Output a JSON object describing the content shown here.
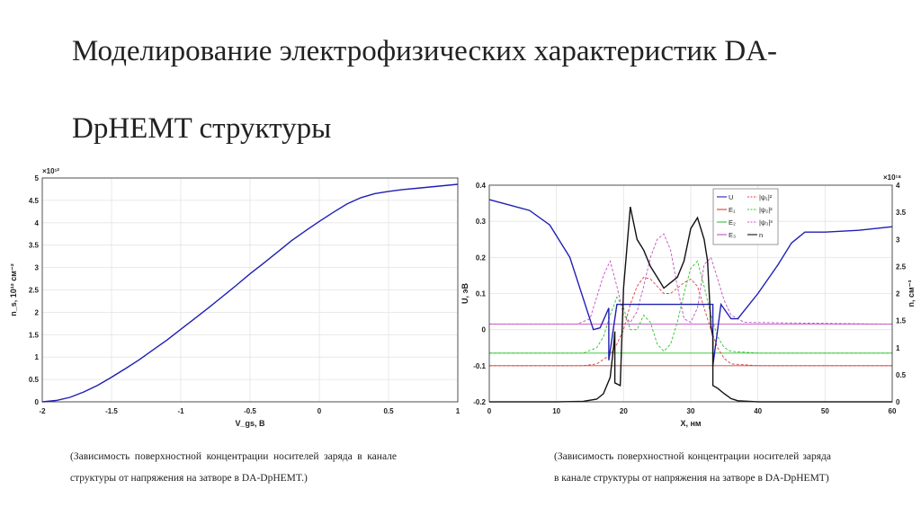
{
  "slide": {
    "title_line1": "Моделирование электрофизических характеристик DA-",
    "title_line2": "DpHEMT структуры"
  },
  "captions": {
    "left": "(Зависимость поверхностной концентрации носителей заряда в канале структуры от напряжения на затворе в DA-DpHEMT.)",
    "right": "(Зависимость поверхностной концентрации носителей заряда в канале структуры от напряжения на затворе в DA-DpHEMT)"
  },
  "chart_data": [
    {
      "type": "line",
      "multiplier": "×10¹²",
      "xlabel": "V_gs, В",
      "ylabel": "n_s, 10¹² см⁻²",
      "xlim": [
        -2,
        1
      ],
      "ylim": [
        0,
        5
      ],
      "xticks": [
        "-2",
        "-1.5",
        "-1",
        "-0.5",
        "0",
        "0.5",
        "1"
      ],
      "yticks": [
        "0",
        "0.5",
        "1",
        "1.5",
        "2",
        "2.5",
        "3",
        "3.5",
        "4",
        "4.5",
        "5"
      ],
      "grid": true,
      "series": [
        {
          "color": "#1f1fb4",
          "x": [
            -2,
            -1.9,
            -1.8,
            -1.7,
            -1.6,
            -1.5,
            -1.4,
            -1.3,
            -1.2,
            -1.1,
            -1.0,
            -0.9,
            -0.8,
            -0.7,
            -0.6,
            -0.5,
            -0.4,
            -0.3,
            -0.2,
            -0.1,
            0.0,
            0.1,
            0.2,
            0.3,
            0.4,
            0.5,
            0.6,
            0.7,
            0.8,
            0.9,
            1.0
          ],
          "y": [
            0.0,
            0.03,
            0.1,
            0.22,
            0.37,
            0.55,
            0.74,
            0.94,
            1.16,
            1.38,
            1.62,
            1.86,
            2.1,
            2.35,
            2.6,
            2.86,
            3.1,
            3.35,
            3.6,
            3.82,
            4.03,
            4.23,
            4.42,
            4.56,
            4.65,
            4.7,
            4.74,
            4.77,
            4.8,
            4.83,
            4.86
          ]
        }
      ]
    },
    {
      "type": "line",
      "xlabel": "X, нм",
      "ylabel_left": "U, эВ",
      "ylabel_right": "n, см⁻³",
      "multiplier_right": "×10¹⁸",
      "xlim": [
        0,
        60
      ],
      "ylim_left": [
        -0.2,
        0.4
      ],
      "ylim_right": [
        0,
        4
      ],
      "xticks": [
        "0",
        "10",
        "20",
        "30",
        "40",
        "50",
        "60"
      ],
      "yticks_left": [
        "-0.2",
        "-0.1",
        "0",
        "0.1",
        "0.2",
        "0.3",
        "0.4"
      ],
      "yticks_right": [
        "0",
        "0.5",
        "1",
        "1.5",
        "2",
        "2.5",
        "3",
        "3.5",
        "4"
      ],
      "grid": true,
      "legend": {
        "placement": "top-right",
        "entries": [
          "U",
          "|ψ₁|²",
          "E₁",
          "|ψ₂|²",
          "E₂",
          "|ψ₃|³",
          "E₃",
          "n"
        ]
      },
      "series": [
        {
          "name": "U",
          "axis": "left",
          "color": "#1f1fb4",
          "x": [
            0,
            3,
            6,
            9,
            12,
            15.5,
            16.5,
            17.8,
            17.8,
            19,
            21,
            23,
            26,
            29,
            31,
            33.3,
            33.3,
            34.5,
            36,
            37,
            40,
            43,
            45,
            47,
            50,
            55,
            60
          ],
          "y": [
            0.36,
            0.345,
            0.33,
            0.29,
            0.2,
            0.0,
            0.005,
            0.06,
            -0.085,
            0.07,
            0.07,
            0.07,
            0.07,
            0.07,
            0.07,
            0.07,
            -0.1,
            0.07,
            0.03,
            0.03,
            0.1,
            0.18,
            0.24,
            0.27,
            0.27,
            0.275,
            0.285
          ]
        },
        {
          "name": "n",
          "axis": "right",
          "color": "#111111",
          "x": [
            0,
            10,
            14,
            16,
            17,
            18,
            18.5,
            18.7,
            18.7,
            19.5,
            20,
            21,
            22,
            23,
            24,
            25,
            26,
            27,
            28,
            29,
            30,
            31,
            32,
            32.5,
            33,
            33.3,
            33.3,
            34,
            35,
            36,
            37,
            40,
            50,
            60
          ],
          "y": [
            0,
            0,
            0.01,
            0.05,
            0.15,
            0.45,
            1.0,
            1.3,
            0.35,
            0.3,
            2.1,
            3.6,
            3.0,
            2.8,
            2.5,
            2.3,
            2.1,
            2.2,
            2.3,
            2.6,
            3.2,
            3.4,
            3.0,
            2.6,
            1.4,
            1.2,
            0.3,
            0.25,
            0.15,
            0.06,
            0.02,
            0.0,
            0.0,
            0.0
          ]
        },
        {
          "name": "E₁",
          "axis": "left",
          "color": "#d94040",
          "x": [
            0,
            60
          ],
          "y": [
            -0.1,
            -0.1
          ]
        },
        {
          "name": "E₂",
          "axis": "left",
          "color": "#30c030",
          "x": [
            0,
            60
          ],
          "y": [
            -0.065,
            -0.065
          ]
        },
        {
          "name": "E₃",
          "axis": "left",
          "color": "#c050c0",
          "x": [
            0,
            60
          ],
          "y": [
            0.015,
            0.015
          ]
        },
        {
          "name": "|ψ₁|²",
          "axis": "left",
          "color": "#d94040",
          "dashed": true,
          "x": [
            0,
            14,
            16,
            18,
            19,
            20,
            21,
            22,
            23,
            24,
            25,
            26,
            27,
            28,
            29,
            30,
            31,
            32,
            33,
            34,
            35,
            36,
            40,
            60
          ],
          "y": [
            -0.1,
            -0.1,
            -0.095,
            -0.07,
            -0.04,
            0.0,
            0.07,
            0.12,
            0.145,
            0.14,
            0.12,
            0.1,
            0.1,
            0.115,
            0.13,
            0.14,
            0.12,
            0.06,
            0.0,
            -0.05,
            -0.08,
            -0.095,
            -0.1,
            -0.1
          ]
        },
        {
          "name": "|ψ₂|²",
          "axis": "left",
          "color": "#30c030",
          "dashed": true,
          "x": [
            0,
            14,
            16,
            17,
            18,
            19,
            20,
            21,
            22,
            23,
            24,
            25,
            26,
            27,
            28,
            29,
            30,
            31,
            32,
            33,
            34,
            35,
            36,
            40,
            60
          ],
          "y": [
            -0.065,
            -0.065,
            -0.05,
            -0.02,
            0.04,
            0.09,
            0.06,
            0.0,
            0.0,
            0.04,
            0.02,
            -0.04,
            -0.06,
            -0.04,
            0.02,
            0.1,
            0.17,
            0.19,
            0.12,
            0.04,
            -0.02,
            -0.05,
            -0.06,
            -0.065,
            -0.065
          ]
        },
        {
          "name": "|ψ₃|³",
          "axis": "left",
          "color": "#c050c0",
          "dashed": true,
          "x": [
            0,
            13,
            15,
            16,
            17,
            18,
            19,
            20,
            21,
            22,
            23,
            24,
            25,
            26,
            27,
            28,
            29,
            30,
            31,
            32,
            33,
            34,
            35,
            36,
            38,
            60
          ],
          "y": [
            0.015,
            0.015,
            0.03,
            0.09,
            0.15,
            0.19,
            0.12,
            0.04,
            0.02,
            0.05,
            0.12,
            0.2,
            0.25,
            0.265,
            0.22,
            0.12,
            0.03,
            0.02,
            0.06,
            0.18,
            0.2,
            0.14,
            0.08,
            0.04,
            0.02,
            0.015
          ]
        }
      ]
    }
  ]
}
